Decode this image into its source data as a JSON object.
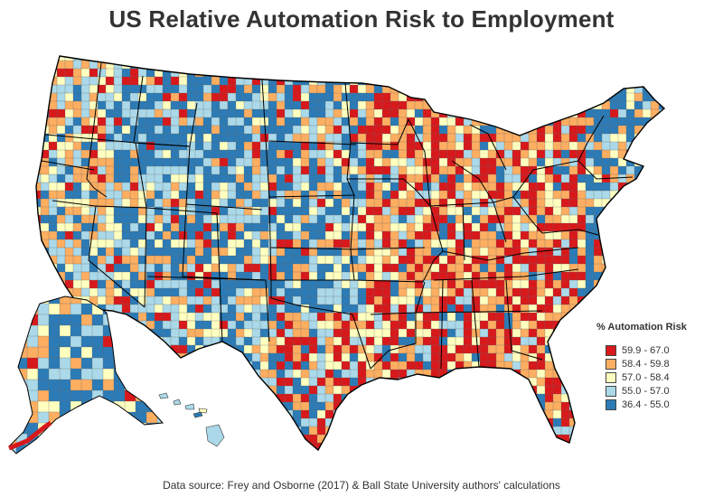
{
  "title": "US Relative Automation Risk to Employment",
  "source": "Data source: Frey and Osborne (2017) & Ball State University authors' calculations",
  "legend": {
    "title": "% Automation Risk",
    "items": [
      {
        "label": "59.9 - 67.0",
        "color": "#d7191c"
      },
      {
        "label": "58.4 - 59.8",
        "color": "#fdae61"
      },
      {
        "label": "57.0 - 58.4",
        "color": "#ffffbf"
      },
      {
        "label": "55.0 - 57.0",
        "color": "#abd9e9"
      },
      {
        "label": "36.4 - 55.0",
        "color": "#2c7bb6"
      }
    ]
  }
}
